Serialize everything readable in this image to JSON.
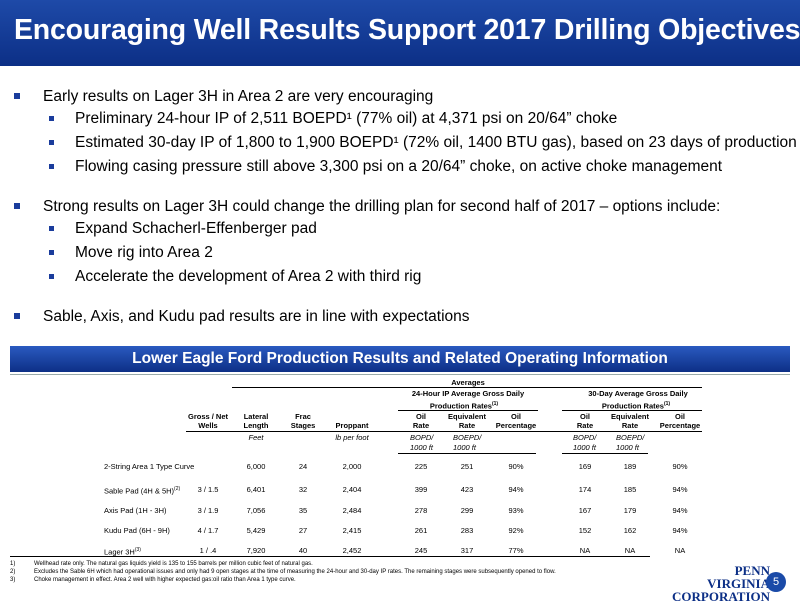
{
  "title": "Encouraging Well Results Support 2017 Drilling Objectives",
  "bullets": [
    {
      "text": "Early results on Lager 3H in Area 2 are very encouraging",
      "sub": [
        "Preliminary 24-hour IP of 2,511 BOEPD¹ (77% oil) at 4,371 psi on 20/64” choke",
        "Estimated 30-day IP of 1,800 to 1,900 BOEPD¹ (72% oil, 1400 BTU gas), based on 23 days of production",
        "Flowing casing pressure still above 3,300 psi on a 20/64” choke, on active choke management"
      ]
    },
    {
      "text": "Strong results on Lager 3H could change the drilling plan for second half of 2017 – options include:",
      "sub": [
        "Expand Schacherl-Effenberger pad",
        "Move rig into Area 2",
        "Accelerate the development of Area 2 with third rig"
      ]
    },
    {
      "text": "Sable, Axis, and Kudu pad results are in line with expectations",
      "sub": []
    }
  ],
  "banner": "Lower Eagle Ford Production Results and Related Operating Information",
  "table": {
    "group_averages": "Averages",
    "group_24hr_l1": "24-Hour IP Average Gross Daily",
    "group_24hr_l2": "Production Rates",
    "group_24hr_sup": "(1)",
    "group_30day_l1": "30-Day Average Gross Daily",
    "group_30day_l2": "Production Rates",
    "group_30day_sup": "(1)",
    "headers": {
      "gross_net_1": "Gross / Net",
      "gross_net_2": "Wells",
      "lateral_1": "Lateral",
      "lateral_2": "Length",
      "frac_1": "Frac",
      "frac_2": "Stages",
      "proppant": "Proppant",
      "oil24_1": "Oil",
      "oil24_2": "Rate",
      "eq24_1": "Equivalent",
      "eq24_2": "Rate",
      "pct24_1": "Oil",
      "pct24_2": "Percentage",
      "oil30_1": "Oil",
      "oil30_2": "Rate",
      "eq30_1": "Equivalent",
      "eq30_2": "Rate",
      "pct30_1": "Oil",
      "pct30_2": "Percentage"
    },
    "units": {
      "lateral": "Feet",
      "proppant": "lb per foot",
      "oil24_1": "BOPD/",
      "oil24_2": "1000 ft",
      "eq24_1": "BOEPD/",
      "eq24_2": "1000 ft",
      "oil30_1": "BOPD/",
      "oil30_2": "1000 ft",
      "eq30_1": "BOEPD/",
      "eq30_2": "1000 ft"
    },
    "rows": [
      {
        "name": "2-String Area 1 Type Curve",
        "sup": "",
        "wells": "",
        "lateral": "6,000",
        "frac": "24",
        "proppant": "2,000",
        "oil24": "225",
        "eq24": "251",
        "pct24": "90%",
        "oil30": "169",
        "eq30": "189",
        "pct30": "90%"
      },
      {
        "name": "Sable Pad (4H & 5H)",
        "sup": "(2)",
        "wells": "3 / 1.5",
        "lateral": "6,401",
        "frac": "32",
        "proppant": "2,404",
        "oil24": "399",
        "eq24": "423",
        "pct24": "94%",
        "oil30": "174",
        "eq30": "185",
        "pct30": "94%"
      },
      {
        "name": "Axis Pad (1H - 3H)",
        "sup": "",
        "wells": "3 / 1.9",
        "lateral": "7,056",
        "frac": "35",
        "proppant": "2,484",
        "oil24": "278",
        "eq24": "299",
        "pct24": "93%",
        "oil30": "167",
        "eq30": "179",
        "pct30": "94%"
      },
      {
        "name": "Kudu Pad (6H - 9H)",
        "sup": "",
        "wells": "4 / 1.7",
        "lateral": "5,429",
        "frac": "27",
        "proppant": "2,415",
        "oil24": "261",
        "eq24": "283",
        "pct24": "92%",
        "oil30": "152",
        "eq30": "162",
        "pct30": "94%"
      },
      {
        "name": "Lager 3H",
        "sup": "(3)",
        "wells": "1 / .4",
        "lateral": "7,920",
        "frac": "40",
        "proppant": "2,452",
        "oil24": "245",
        "eq24": "317",
        "pct24": "77%",
        "oil30": "NA",
        "eq30": "NA",
        "pct30": "NA"
      }
    ]
  },
  "footnotes": [
    {
      "n": "1)",
      "t": "Wellhead rate only.  The natural gas liquids yield is 135 to 155 barrels per million cubic feet of natural gas."
    },
    {
      "n": "2)",
      "t": "Excludes the Sable 6H which had operational issues and only had 9 open stages at the time of measuring the 24-hour and 30-day IP rates.  The remaining stages were subsequently opened to flow."
    },
    {
      "n": "3)",
      "t": "Choke management in effect.  Area 2 well with higher expected gas:oil ratio than Area 1 type curve."
    }
  ],
  "logo": {
    "line1": "PENN VIRGINIA",
    "line2": "CORPORATION"
  },
  "page_number": "5"
}
